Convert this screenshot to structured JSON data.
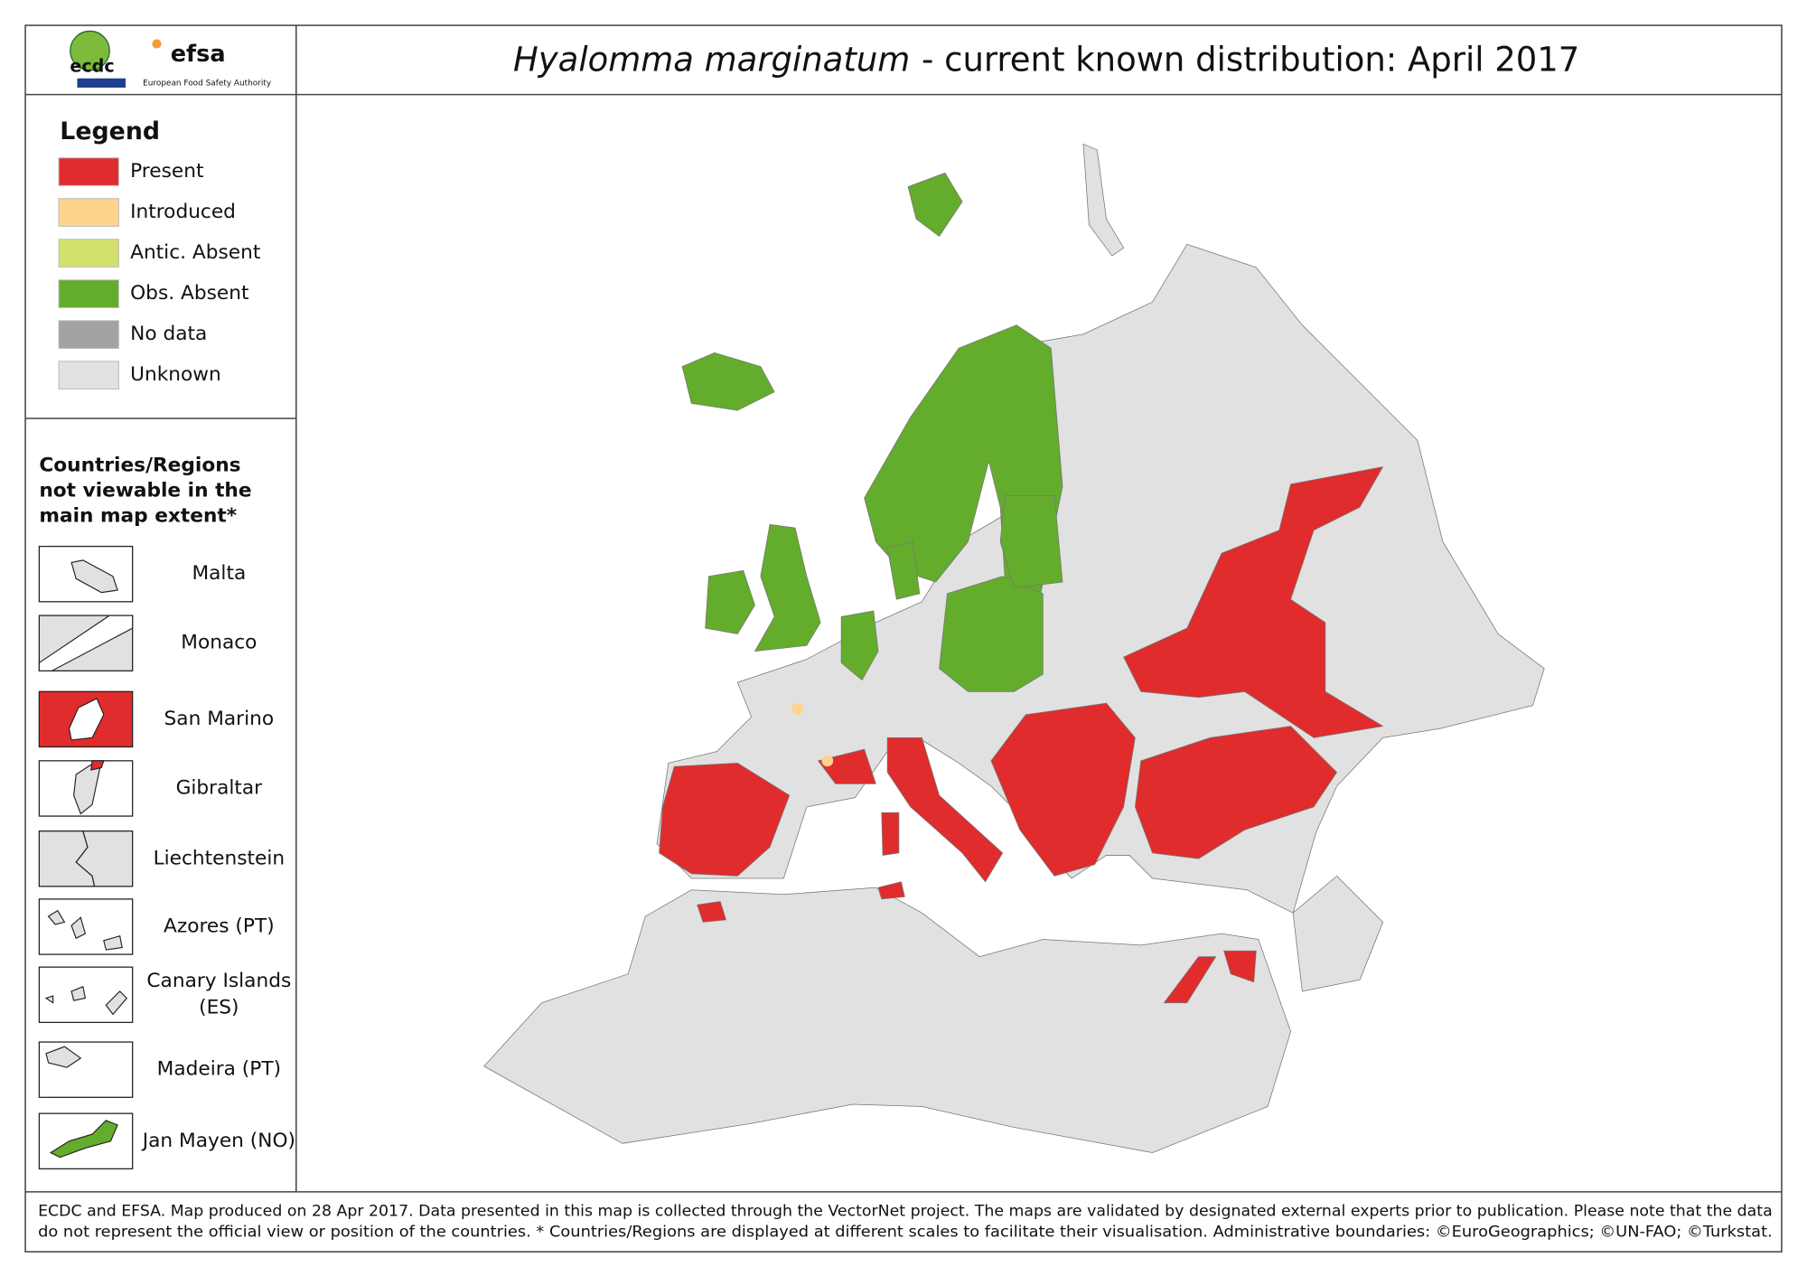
{
  "header": {
    "logos": {
      "ecdc": "ecdc",
      "efsa": "efsa",
      "efsa_caption": "European Food Safety Authority"
    },
    "title_species": "Hyalomma marginatum",
    "title_rest": "- current known distribution: April 2017"
  },
  "legend": {
    "title": "Legend",
    "items": [
      {
        "label": "Present",
        "color": "#e02c2c"
      },
      {
        "label": "Introduced",
        "color": "#fdd38e"
      },
      {
        "label": "Antic. Absent",
        "color": "#d4e06c"
      },
      {
        "label": "Obs. Absent",
        "color": "#64ac2b"
      },
      {
        "label": "No data",
        "color": "#a2a2a2"
      },
      {
        "label": "Unknown",
        "color": "#e1e1e1"
      }
    ]
  },
  "insets": {
    "title_lines": [
      "Countries/Regions",
      "not viewable in the",
      "main map extent*"
    ],
    "items": [
      {
        "lines": [
          "Malta"
        ]
      },
      {
        "lines": [
          "Monaco"
        ]
      },
      {
        "lines": [
          "San Marino"
        ]
      },
      {
        "lines": [
          "Gibraltar"
        ]
      },
      {
        "lines": [
          "Liechtenstein"
        ]
      },
      {
        "lines": [
          "Azores (PT)"
        ]
      },
      {
        "lines": [
          "Canary Islands",
          "(ES)"
        ]
      },
      {
        "lines": [
          "Madeira (PT)"
        ]
      },
      {
        "lines": [
          "Jan Mayen (NO)"
        ]
      }
    ]
  },
  "footer": {
    "lines": [
      "ECDC and EFSA. Map produced on 28 Apr 2017. Data presented in this map is collected through the VectorNet project. The maps are validated by designated external experts prior to publication. Please note that the data",
      "do not represent the official view or position of the countries. * Countries/Regions are displayed at different scales to facilitate their visualisation. Administrative boundaries: ©EuroGeographics; ©UN-FAO; ©Turkstat."
    ]
  }
}
